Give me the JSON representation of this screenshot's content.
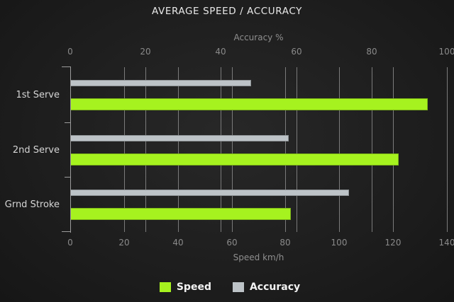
{
  "title": "AVERAGE SPEED / ACCURACY",
  "chart_data": {
    "type": "bar",
    "orientation": "horizontal",
    "categories": [
      "1st Serve",
      "2nd Serve",
      "Grnd Stroke"
    ],
    "series": [
      {
        "name": "Speed",
        "axis": "bottom",
        "color": "#a6f21f",
        "values": [
          133,
          122,
          82
        ]
      },
      {
        "name": "Accuracy",
        "axis": "top",
        "color": "#bdc3c7",
        "values": [
          48,
          58,
          74
        ]
      }
    ],
    "axes": {
      "top": {
        "label": "Accuracy %",
        "min": 0,
        "max": 100,
        "ticks": [
          0,
          20,
          40,
          60,
          80,
          100
        ]
      },
      "bottom": {
        "label": "Speed km/h",
        "min": 0,
        "max": 140,
        "ticks": [
          0,
          20,
          40,
          60,
          80,
          100,
          120,
          140
        ]
      }
    },
    "grid": true,
    "legend": [
      "Speed",
      "Accuracy"
    ],
    "legend_position": "bottom"
  },
  "colors": {
    "speed": "#a6f21f",
    "accuracy": "#bdc3c7",
    "grid": "#7b7b7b",
    "axis": "#9c9c9c",
    "tick_text": "#8a8a8a",
    "category_text": "#d6d6d6",
    "title_text": "#e8e8e8",
    "legend_text": "#f2f2f2"
  }
}
